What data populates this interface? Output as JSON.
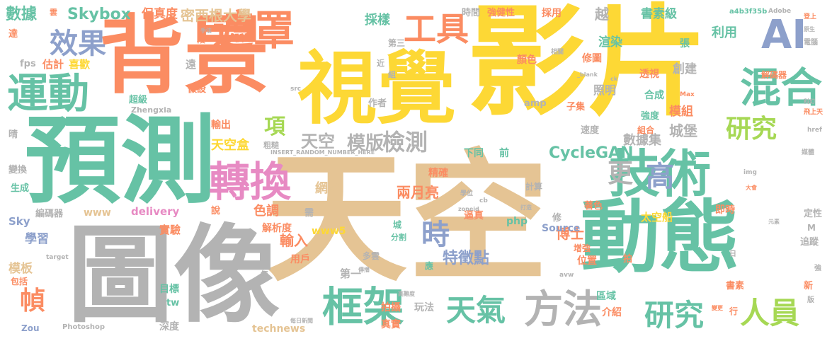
{
  "palette": {
    "orange": "#fb8c62",
    "yellow": "#fdd835",
    "tan": "#e5c494",
    "gray": "#b3b3b3",
    "teal": "#66c2a5",
    "blue": "#8da0cb",
    "pink": "#e78ac3",
    "green": "#a6d854"
  },
  "words": [
    {
      "text": "影片",
      "color": "yellow"
    },
    {
      "text": "天空",
      "color": "tan"
    },
    {
      "text": "圖像",
      "color": "gray"
    },
    {
      "text": "預測",
      "color": "teal"
    },
    {
      "text": "背景",
      "color": "orange"
    },
    {
      "text": "視覺",
      "color": "yellow"
    },
    {
      "text": "動態",
      "color": "teal"
    },
    {
      "text": "技術",
      "color": "teal"
    },
    {
      "text": "遮罩",
      "color": "orange"
    },
    {
      "text": "運動",
      "color": "teal"
    },
    {
      "text": "轉換",
      "color": "pink"
    },
    {
      "text": "效果",
      "color": "blue"
    },
    {
      "text": "框架",
      "color": "teal"
    },
    {
      "text": "方法",
      "color": "gray"
    },
    {
      "text": "混合",
      "color": "teal"
    },
    {
      "text": "工具",
      "color": "orange"
    },
    {
      "text": "AI",
      "color": "blue"
    },
    {
      "text": "研究",
      "color": "teal"
    },
    {
      "text": "人員",
      "color": "green"
    },
    {
      "text": "天氣",
      "color": "teal"
    },
    {
      "text": "研究",
      "color": "green"
    },
    {
      "text": "高",
      "color": "blue"
    },
    {
      "text": "更",
      "color": "gray"
    },
    {
      "text": "時",
      "color": "blue"
    },
    {
      "text": "模版",
      "color": "gray"
    },
    {
      "text": "檢測",
      "color": "gray"
    },
    {
      "text": "天空",
      "color": "gray"
    },
    {
      "text": "項",
      "color": "green"
    },
    {
      "text": "幀",
      "color": "orange"
    },
    {
      "text": "特徵點",
      "color": "blue"
    },
    {
      "text": "CycleGAN",
      "color": "teal"
    },
    {
      "text": "Skybox",
      "color": "teal"
    },
    {
      "text": "數據",
      "color": "teal"
    },
    {
      "text": "密西根大學",
      "color": "tan"
    },
    {
      "text": "保真度",
      "color": "orange"
    },
    {
      "text": "採樣",
      "color": "teal"
    },
    {
      "text": "越",
      "color": "gray"
    },
    {
      "text": "書素級",
      "color": "teal"
    },
    {
      "text": "天空盒",
      "color": "yellow"
    },
    {
      "text": "數據集",
      "color": "gray"
    },
    {
      "text": "城堡",
      "color": "gray"
    },
    {
      "text": "兩月亮",
      "color": "orange"
    },
    {
      "text": "網路",
      "color": "tan"
    },
    {
      "text": "輸入",
      "color": "orange"
    },
    {
      "text": "博士",
      "color": "orange"
    },
    {
      "text": "色調",
      "color": "orange"
    },
    {
      "text": "渲染",
      "color": "teal"
    },
    {
      "text": "利用",
      "color": "teal"
    },
    {
      "text": "創建",
      "color": "gray"
    },
    {
      "text": "照明",
      "color": "gray"
    },
    {
      "text": "模組",
      "color": "orange"
    },
    {
      "text": "估計",
      "color": "orange"
    },
    {
      "text": "喜歡",
      "color": "yellow"
    },
    {
      "text": "學習",
      "color": "blue"
    },
    {
      "text": "模板",
      "color": "tan"
    },
    {
      "text": "目標",
      "color": "teal"
    },
    {
      "text": "真實",
      "color": "orange"
    },
    {
      "text": "拍攝",
      "color": "orange"
    },
    {
      "text": "深度",
      "color": "gray"
    },
    {
      "text": "Photoshop",
      "color": "gray"
    },
    {
      "text": "technews",
      "color": "tan"
    },
    {
      "text": "Source",
      "color": "blue"
    },
    {
      "text": "delivery",
      "color": "pink"
    },
    {
      "text": "www5",
      "color": "yellow"
    },
    {
      "text": "www",
      "color": "tan"
    },
    {
      "text": "fps",
      "color": "gray"
    },
    {
      "text": "Sky",
      "color": "blue"
    },
    {
      "text": "php",
      "color": "teal"
    },
    {
      "text": "amp",
      "color": "gray"
    },
    {
      "text": "輸出",
      "color": "orange"
    },
    {
      "text": "解析度",
      "color": "orange"
    },
    {
      "text": "實驗",
      "color": "orange"
    },
    {
      "text": "第一",
      "color": "gray"
    },
    {
      "text": "玩法",
      "color": "gray"
    },
    {
      "text": "下同",
      "color": "teal"
    },
    {
      "text": "前",
      "color": "teal"
    },
    {
      "text": "精確",
      "color": "orange"
    },
    {
      "text": "區域",
      "color": "teal"
    },
    {
      "text": "介紹",
      "color": "orange"
    },
    {
      "text": "時間",
      "color": "gray"
    },
    {
      "text": "強健性",
      "color": "orange"
    },
    {
      "text": "採用",
      "color": "orange"
    },
    {
      "text": "顏色",
      "color": "orange"
    },
    {
      "text": "修圖",
      "color": "orange"
    },
    {
      "text": "透視",
      "color": "orange"
    },
    {
      "text": "合成",
      "color": "teal"
    },
    {
      "text": "強度",
      "color": "teal"
    },
    {
      "text": "速度",
      "color": "gray"
    },
    {
      "text": "組合",
      "color": "orange"
    },
    {
      "text": "子集",
      "color": "orange"
    },
    {
      "text": "即時",
      "color": "orange"
    },
    {
      "text": "位置",
      "color": "orange"
    },
    {
      "text": "太空船",
      "color": "yellow"
    },
    {
      "text": "著色",
      "color": "orange"
    },
    {
      "text": "增強",
      "color": "orange"
    },
    {
      "text": "書素",
      "color": "orange"
    },
    {
      "text": "定性",
      "color": "gray"
    },
    {
      "text": "追蹤",
      "color": "gray"
    },
    {
      "text": "解碼器",
      "color": "orange"
    },
    {
      "text": "超級",
      "color": "teal"
    },
    {
      "text": "假設",
      "color": "orange"
    },
    {
      "text": "編碼器",
      "color": "gray"
    },
    {
      "text": "生成",
      "color": "teal"
    },
    {
      "text": "變換",
      "color": "gray"
    },
    {
      "text": "包括",
      "color": "orange"
    },
    {
      "text": "Zou",
      "color": "blue"
    },
    {
      "text": "Zhengxia",
      "color": "gray"
    },
    {
      "text": "作者",
      "color": "gray"
    },
    {
      "text": "遠",
      "color": "gray"
    },
    {
      "text": "說",
      "color": "orange"
    },
    {
      "text": "需",
      "color": "gray"
    },
    {
      "text": "用戶",
      "color": "orange"
    },
    {
      "text": "逼真",
      "color": "orange"
    },
    {
      "text": "計算",
      "color": "gray"
    },
    {
      "text": "城",
      "color": "teal"
    },
    {
      "text": "修",
      "color": "gray"
    },
    {
      "text": "分割",
      "color": "teal"
    },
    {
      "text": "應",
      "color": "teal"
    },
    {
      "text": "多雲",
      "color": "gray"
    },
    {
      "text": "新",
      "color": "orange"
    },
    {
      "text": "晴",
      "color": "gray"
    },
    {
      "text": "達",
      "color": "orange"
    },
    {
      "text": "張",
      "color": "teal"
    },
    {
      "text": "拍",
      "color": "orange"
    },
    {
      "text": "tw",
      "color": "teal"
    },
    {
      "text": "M",
      "color": "gray"
    },
    {
      "text": "段",
      "color": "orange"
    },
    {
      "text": "年",
      "color": "gray"
    },
    {
      "text": "第三",
      "color": "gray"
    },
    {
      "text": "近",
      "color": "gray"
    },
    {
      "text": "組",
      "color": "gray"
    },
    {
      "text": "行",
      "color": "orange"
    },
    {
      "text": "粗糙",
      "color": "gray"
    },
    {
      "text": "a4b3f35b",
      "color": "teal"
    },
    {
      "text": "Adobe",
      "color": "gray"
    },
    {
      "text": "電腦",
      "color": "gray"
    },
    {
      "text": "登上",
      "color": "orange"
    },
    {
      "text": "INSERT_RANDOM_NUMBER_HERE",
      "color": "gray"
    },
    {
      "text": "zoneid",
      "color": "gray"
    },
    {
      "text": "cb",
      "color": "gray"
    },
    {
      "text": "src",
      "color": "gray"
    },
    {
      "text": "Max",
      "color": "orange"
    },
    {
      "text": "href",
      "color": "gray"
    },
    {
      "text": "target",
      "color": "gray"
    },
    {
      "text": "avw",
      "color": "gray"
    },
    {
      "text": "img",
      "color": "gray"
    },
    {
      "text": "_blank",
      "color": "gray"
    },
    {
      "text": "ck",
      "color": "gray"
    },
    {
      "text": "強",
      "color": "gray"
    },
    {
      "text": "版",
      "color": "gray"
    },
    {
      "text": "日",
      "color": "gray"
    },
    {
      "text": "雲",
      "color": "orange"
    },
    {
      "text": "相關",
      "color": "gray"
    },
    {
      "text": "學位",
      "color": "gray"
    },
    {
      "text": "打造",
      "color": "gray"
    },
    {
      "text": "媒體",
      "color": "gray"
    },
    {
      "text": "飛上天",
      "color": "orange"
    },
    {
      "text": "高難度",
      "color": "gray"
    },
    {
      "text": "每日新聞",
      "color": "gray"
    },
    {
      "text": "大會",
      "color": "orange"
    },
    {
      "text": "元素",
      "color": "gray"
    },
    {
      "text": "科幻",
      "color": "gray"
    },
    {
      "text": "原生",
      "color": "gray"
    },
    {
      "text": "手法",
      "color": "gray"
    },
    {
      "text": "傳播",
      "color": "gray"
    },
    {
      "text": "變更",
      "color": "orange"
    }
  ]
}
